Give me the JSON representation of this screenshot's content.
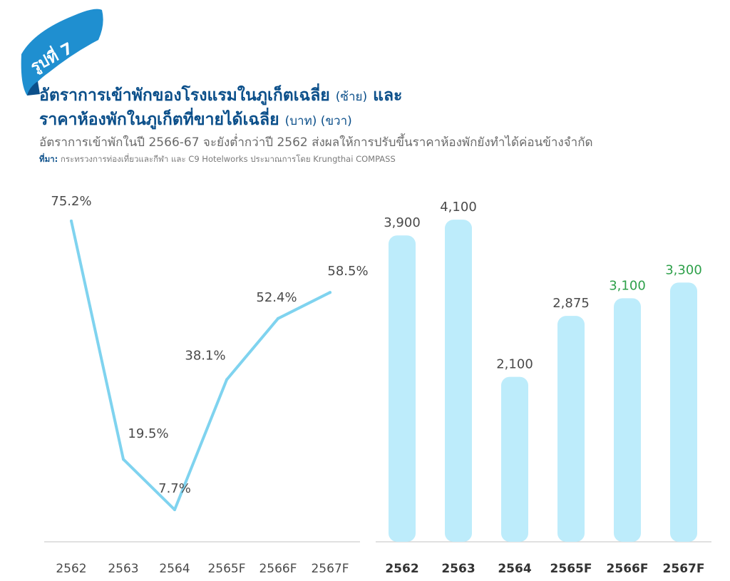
{
  "badge": {
    "text": "รูปที่ 7",
    "color": "#1f8fd0"
  },
  "header": {
    "title_line1": "อัตราการเข้าพักของโรงแรมในภูเก็ตเฉลี่ย",
    "title_line1_unit": "(ซ้าย)",
    "title_line1_and": "และ",
    "title_line2": "ราคาห้องพักในภูเก็ตที่ขายได้เฉลี่ย",
    "title_line2_unit": "(บาท) (ขวา)",
    "subtitle": "อัตราการเข้าพักในปี 2566-67 จะยังต่ำกว่าปี 2562 ส่งผลให้การปรับขึ้นราคาห้องพักยังทำได้ค่อนข้างจำกัด",
    "source_label": "ที่มา:",
    "source_text": "กระทรวงการท่องเที่ยวและกีฬา และ C9 Hotelworks ประมาณการโดย Krungthai COMPASS"
  },
  "chart_data": [
    {
      "type": "line",
      "categories": [
        "2562",
        "2563",
        "2564",
        "2565F",
        "2566F",
        "2567F"
      ],
      "values": [
        75.2,
        19.5,
        7.7,
        38.1,
        52.4,
        58.5
      ],
      "data_labels": [
        "75.2%",
        "19.5%",
        "7.7%",
        "38.1%",
        "52.4%",
        "58.5%"
      ],
      "unit": "%",
      "color": "#7fd3ef",
      "grid": false
    },
    {
      "type": "bar",
      "categories": [
        "2562",
        "2563",
        "2564",
        "2565F",
        "2566F",
        "2567F"
      ],
      "values": [
        3900,
        4100,
        2100,
        2875,
        3100,
        3300
      ],
      "data_labels": [
        "3,900",
        "4,100",
        "2,100",
        "2,875",
        "3,100",
        "3,300"
      ],
      "forecast_highlight": [
        false,
        false,
        false,
        false,
        true,
        true
      ],
      "color": "#bdecfb",
      "forecast_label_color": "#2ea04a",
      "grid": false
    }
  ]
}
